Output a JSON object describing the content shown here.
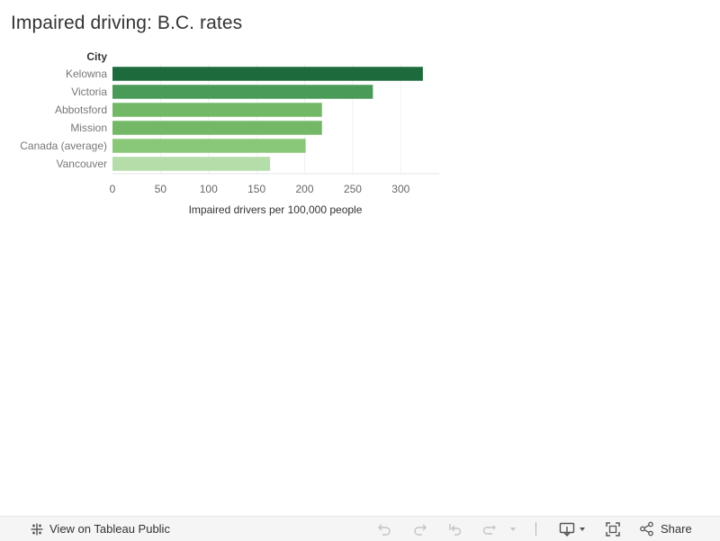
{
  "header": {
    "title": "Impaired driving: B.C. rates"
  },
  "chart_data": {
    "type": "bar",
    "orientation": "horizontal",
    "title": "Impaired driving: B.C. rates",
    "category_header": "City",
    "categories": [
      "Kelowna",
      "Victoria",
      "Abbotsford",
      "Mission",
      "Canada (average)",
      "Vancouver"
    ],
    "values": [
      323,
      271,
      218,
      218,
      201,
      164
    ],
    "colors": [
      "#1d6b3c",
      "#4a9a58",
      "#72b866",
      "#72b866",
      "#88c878",
      "#b4ddaa"
    ],
    "xlabel": "Impaired drivers per 100,000 people",
    "xlim": [
      0,
      340
    ],
    "xticks": [
      0,
      50,
      100,
      150,
      200,
      250,
      300
    ],
    "grid": true
  },
  "toolbar": {
    "view_on_public_label": "View on Tableau Public",
    "share_label": "Share",
    "icons": [
      "tableau-icon",
      "undo-icon",
      "redo-icon",
      "revert-icon",
      "refresh-icon",
      "dropdown-icon",
      "download-icon",
      "fullscreen-icon",
      "share-icon"
    ]
  }
}
